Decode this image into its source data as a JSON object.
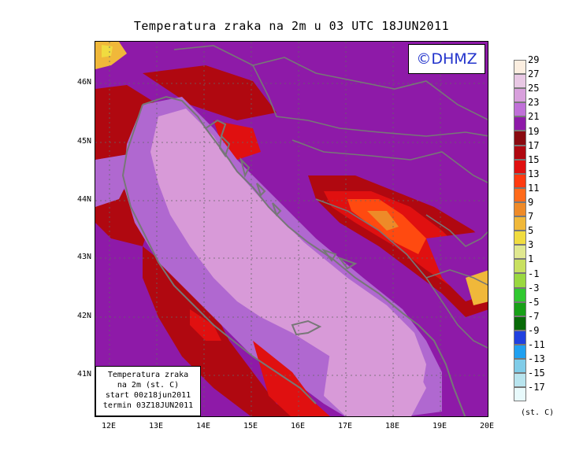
{
  "title": "Temperatura zraka na 2m u 03 UTC 18JUN2011",
  "logo": "©DHMZ",
  "info": {
    "line1": "Temperatura zraka",
    "line2": "na 2m (st. C)",
    "line3": "start 00z18jun2011",
    "line4": "termin 03Z18JUN2011"
  },
  "axes": {
    "lon_labels": [
      "12E",
      "13E",
      "14E",
      "15E",
      "16E",
      "17E",
      "18E",
      "19E",
      "20E"
    ],
    "lat_labels": [
      "46N",
      "45N",
      "44N",
      "43N",
      "42N",
      "41N"
    ]
  },
  "legend": {
    "unit": "(st. C)",
    "labels": [
      "29",
      "27",
      "25",
      "23",
      "21",
      "19",
      "17",
      "15",
      "13",
      "11",
      "9",
      "7",
      "5",
      "3",
      "1",
      "-1",
      "-3",
      "-5",
      "-7",
      "-9",
      "-11",
      "-13",
      "-15",
      "-17"
    ],
    "colors": [
      "#fbeee0",
      "#e8c8e4",
      "#d8a0dc",
      "#c070d8",
      "#8e1aa8",
      "#8a0a10",
      "#b00810",
      "#e01010",
      "#ff3a10",
      "#ff6a1a",
      "#ee8a28",
      "#f0b83a",
      "#f0dc40",
      "#e0e890",
      "#c8e060",
      "#9ad840",
      "#30c830",
      "#18a018",
      "#086a08",
      "#2040e0",
      "#20a0f0",
      "#80cce8",
      "#b8e4ee",
      "#e8fafc"
    ]
  },
  "colors": {
    "sea": "#d89ad8",
    "coastal_sea": "#b068d0",
    "land": "#8e1aa8",
    "warm": "#b00810",
    "hot": "#e01010",
    "hotter": "#ff4a10",
    "logo_text": "#2233cc"
  }
}
